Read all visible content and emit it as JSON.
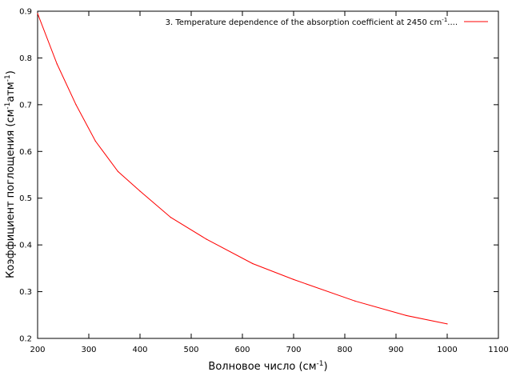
{
  "chart_data": {
    "type": "line",
    "xlabel": "Волновое число (см",
    "xlabel_sup": "-1",
    "xlabel_end": ")",
    "ylabel": "Коэффициент поглощения (см",
    "ylabel_sup1": "-1",
    "ylabel_mid": "атм",
    "ylabel_sup2": "-1",
    "ylabel_end": ")",
    "xlim": [
      200,
      1100
    ],
    "ylim": [
      0.2,
      0.9
    ],
    "x_ticks": [
      200,
      300,
      400,
      500,
      600,
      700,
      800,
      900,
      1000,
      1100
    ],
    "y_ticks": [
      0.2,
      0.3,
      0.4,
      0.5,
      0.6,
      0.7,
      0.8,
      0.9
    ],
    "grid": false,
    "legend_position": "top-right",
    "series": [
      {
        "name": "3. Temperature dependence of the absorption coefficient at 2450 cm",
        "name_sup": "-1",
        "name_end": "....",
        "color": "#ff0000",
        "x": [
          200,
          238,
          275,
          313,
          357,
          400,
          460,
          530,
          620,
          700,
          820,
          920,
          1000
        ],
        "y": [
          0.895,
          0.787,
          0.7,
          0.622,
          0.557,
          0.515,
          0.459,
          0.412,
          0.36,
          0.326,
          0.28,
          0.249,
          0.231
        ]
      }
    ]
  }
}
